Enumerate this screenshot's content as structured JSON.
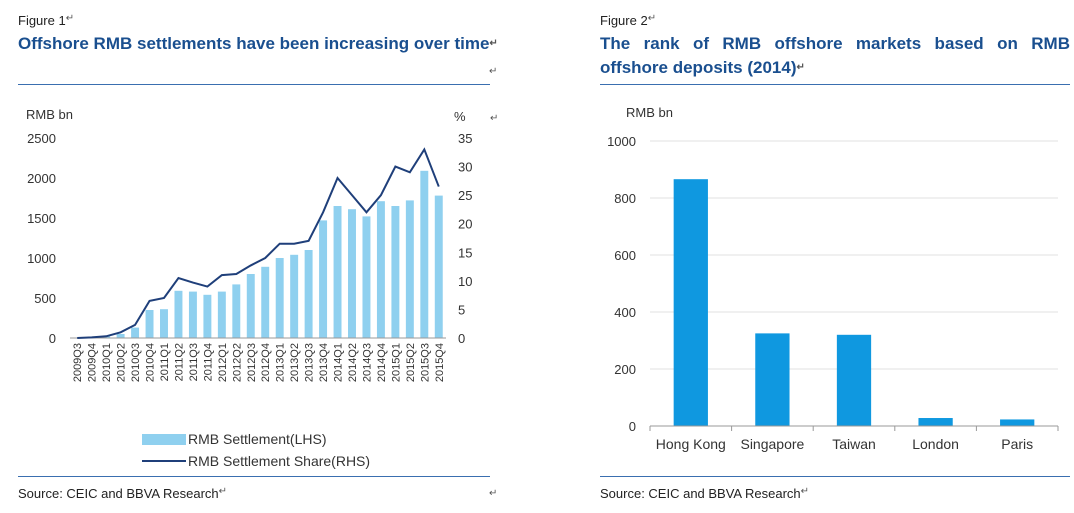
{
  "figure1": {
    "label": "Figure 1",
    "title": "Offshore RMB settlements have been increasing over time",
    "source": "Source: CEIC and BBVA Research",
    "chart_data": {
      "type": "bar",
      "combo": "bar + line (secondary axis)",
      "title": "",
      "y_unit_left": "RMB bn",
      "y_unit_right": "%",
      "ylim_left": [
        0,
        2500
      ],
      "yticks_left": [
        "0",
        "500",
        "1000",
        "1500",
        "2000",
        "2500"
      ],
      "ylim_right": [
        0,
        35
      ],
      "yticks_right": [
        "0",
        "5",
        "10",
        "15",
        "20",
        "25",
        "30",
        "35"
      ],
      "categories": [
        "2009Q3",
        "2009Q4",
        "2010Q1",
        "2010Q2",
        "2010Q3",
        "2010Q4",
        "2011Q1",
        "2011Q2",
        "2011Q3",
        "2011Q4",
        "2012Q1",
        "2012Q2",
        "2012Q3",
        "2012Q4",
        "2013Q1",
        "2013Q2",
        "2013Q3",
        "2013Q4",
        "2014Q1",
        "2014Q2",
        "2014Q3",
        "2014Q4",
        "2015Q1",
        "2015Q2",
        "2015Q3",
        "2015Q4"
      ],
      "series": [
        {
          "name": "RMB Settlement(LHS)",
          "type": "bar",
          "axis": "left",
          "color": "#8fd0ef",
          "values": [
            2,
            5,
            20,
            50,
            130,
            350,
            360,
            590,
            580,
            540,
            580,
            670,
            800,
            890,
            1000,
            1040,
            1100,
            1470,
            1650,
            1610,
            1520,
            1710,
            1650,
            1720,
            2090,
            1780
          ]
        },
        {
          "name": "RMB Settlement Share(RHS)",
          "type": "line",
          "axis": "right",
          "color": "#1f3f7a",
          "values": [
            0,
            0.1,
            0.3,
            1,
            2.3,
            6.5,
            7,
            10.5,
            9.7,
            9,
            11,
            11.2,
            12.7,
            14,
            16.5,
            16.5,
            17,
            22,
            28,
            25,
            22,
            25,
            30,
            29,
            33,
            26.5
          ]
        }
      ],
      "legend_position": "bottom",
      "grid": false
    }
  },
  "figure2": {
    "label": "Figure 2",
    "title": "The rank of RMB offshore markets based on RMB offshore deposits (2014)",
    "source": "Source: CEIC and BBVA Research",
    "chart_data": {
      "type": "bar",
      "title": "",
      "y_unit": "RMB bn",
      "ylim": [
        0,
        1000
      ],
      "yticks": [
        "0",
        "200",
        "400",
        "600",
        "800",
        "1000"
      ],
      "categories": [
        "Hong Kong",
        "Singapore",
        "Taiwan",
        "London",
        "Paris"
      ],
      "values": [
        866,
        325,
        320,
        28,
        23
      ],
      "color": "#0f98e0",
      "grid": true
    }
  }
}
